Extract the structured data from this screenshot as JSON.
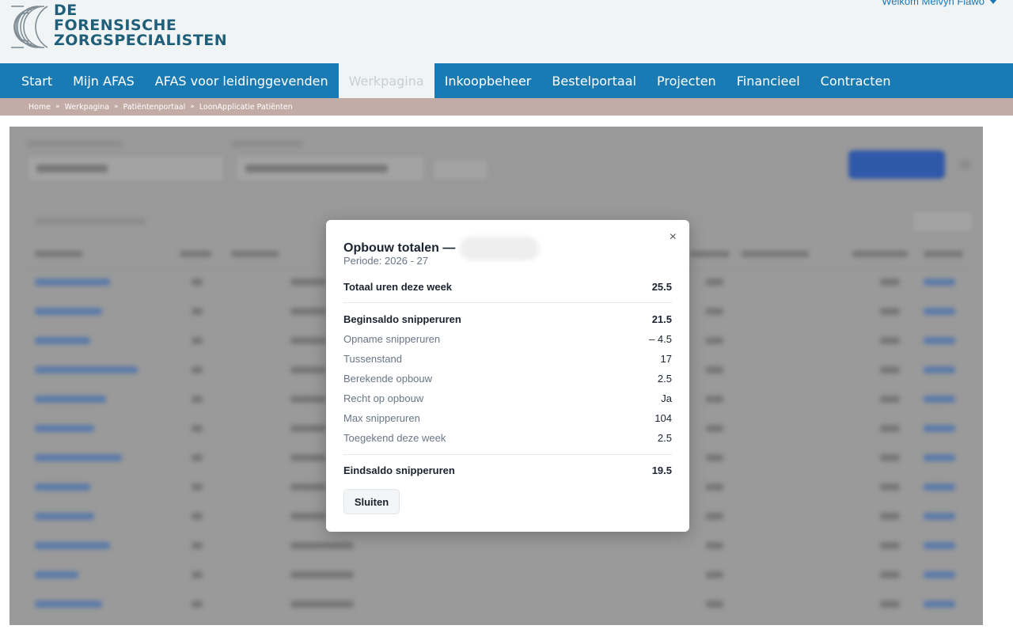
{
  "header": {
    "logo_lines": [
      "DE",
      "FORENSISCHE",
      "ZORGSPECIALISTEN"
    ],
    "welcome": "Welkom Melvyn Flawo"
  },
  "nav": {
    "items": [
      {
        "label": "Start",
        "active": false
      },
      {
        "label": "Mijn AFAS",
        "active": false
      },
      {
        "label": "AFAS voor leidinggevenden",
        "active": false
      },
      {
        "label": "Werkpagina",
        "active": true
      },
      {
        "label": "Inkoopbeheer",
        "active": false
      },
      {
        "label": "Bestelportaal",
        "active": false
      },
      {
        "label": "Projecten",
        "active": false
      },
      {
        "label": "Financieel",
        "active": false
      },
      {
        "label": "Contracten",
        "active": false
      }
    ]
  },
  "breadcrumb": {
    "items": [
      "Home",
      "Werkpagina",
      "Patiëntenportaal",
      "LoonApplicatie Patiënten"
    ],
    "separator": "»"
  },
  "modal": {
    "title": "Opbouw totalen —",
    "subtitle": "Periode: 2026 - 27",
    "close_icon": "×",
    "rows": [
      {
        "label": "Totaal uren deze week",
        "value": "25.5",
        "bold": true
      },
      {
        "label": "Beginsaldo snipperuren",
        "value": "21.5",
        "bold": true
      },
      {
        "label": "Opname snipperuren",
        "value": "– 4.5",
        "bold": false
      },
      {
        "label": "Tussenstand",
        "value": "17",
        "bold": false
      },
      {
        "label": "Berekende opbouw",
        "value": "2.5",
        "bold": false
      },
      {
        "label": "Recht op opbouw",
        "value": "Ja",
        "bold": false
      },
      {
        "label": "Max snipperuren",
        "value": "104",
        "bold": false
      },
      {
        "label": "Toegekend deze week",
        "value": "2.5",
        "bold": false
      },
      {
        "label": "Eindsaldo snipperuren",
        "value": "19.5",
        "bold": true
      }
    ],
    "close_button": "Sluiten"
  },
  "colors": {
    "brand_blue": "#1a7bb4",
    "logo_teal": "#1f5f7a",
    "breadcrumb_bg": "#c4aca6",
    "overlay_gray": "#9a9a9a"
  }
}
